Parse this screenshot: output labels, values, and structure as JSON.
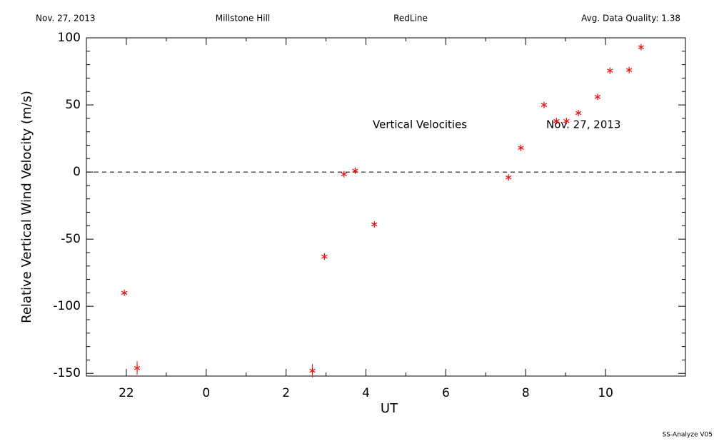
{
  "header": {
    "date": "Nov. 27, 2013",
    "site": "Millstone Hill",
    "filter": "RedLine",
    "quality": "Avg. Data Quality: 1.38"
  },
  "chart_data": {
    "type": "scatter",
    "xlabel": "UT",
    "ylabel": "Relative Vertical Wind Velocity (m/s)",
    "annotations": [
      "Vertical Velocities",
      "Nov. 27, 2013"
    ],
    "x": [
      21.95,
      22.27,
      26.66,
      26.96,
      27.45,
      27.73,
      28.21,
      31.57,
      31.88,
      32.46,
      32.77,
      33.02,
      33.32,
      33.8,
      34.11,
      34.59,
      34.89
    ],
    "series": [
      {
        "name": "Vertical Velocities",
        "color": "#ff0000",
        "values": [
          -90,
          -146,
          -148,
          -63,
          -1.6,
          1,
          -39,
          -4,
          18,
          50,
          38,
          38,
          44,
          56,
          75.5,
          76,
          93
        ],
        "errors": [
          null,
          5,
          5,
          null,
          null,
          null,
          null,
          null,
          null,
          null,
          null,
          null,
          null,
          null,
          null,
          null,
          null
        ]
      }
    ],
    "xlim": [
      21,
      36
    ],
    "xticks": [
      22,
      {
        "value": 24,
        "label": "0"
      },
      {
        "value": 26,
        "label": "2"
      },
      {
        "value": 28,
        "label": "4"
      },
      {
        "value": 30,
        "label": "6"
      },
      {
        "value": 32,
        "label": "8"
      },
      {
        "value": 34,
        "label": "10"
      }
    ],
    "ylim": [
      -152,
      100
    ],
    "yticks": [
      -150,
      -100,
      -50,
      0,
      50,
      100
    ],
    "reference_line": 0
  },
  "footer": "SS-Analyze V05"
}
